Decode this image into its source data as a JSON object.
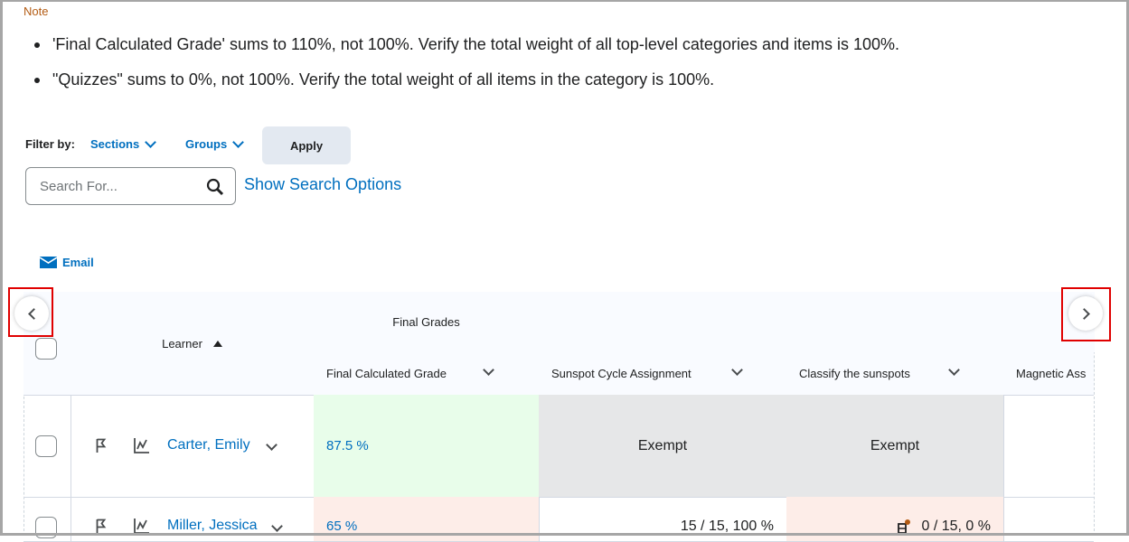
{
  "note": {
    "label": "Note",
    "items": [
      "'Final Calculated Grade' sums to 110%, not 100%. Verify the total weight of all top-level categories and items is 100%.",
      "\"Quizzes\" sums to 0%, not 100%. Verify the total weight of all items in the category is 100%."
    ]
  },
  "filter": {
    "label": "Filter by:",
    "sections": "Sections",
    "groups": "Groups",
    "apply": "Apply"
  },
  "search": {
    "placeholder": "Search For...",
    "options_link": "Show Search Options"
  },
  "actions": {
    "email": "Email"
  },
  "table": {
    "learner_header": "Learner",
    "group_header": "Final Grades",
    "columns": [
      "Final Calculated Grade",
      "Sunspot Cycle Assignment",
      "Classify the sunspots",
      "Magnetic Ass"
    ],
    "rows": [
      {
        "name": "Carter, Emily",
        "final": "87.5 %",
        "sunspot": "Exempt",
        "classify": "Exempt"
      },
      {
        "name": "Miller, Jessica",
        "final": "65 %",
        "sunspot": "15 / 15, 100 %",
        "classify": "0 / 15, 0 %"
      }
    ]
  },
  "colors": {
    "accent": "#006fbf",
    "pass": "#e8fdea",
    "fail": "#fdede8",
    "exempt": "#e6e7e8",
    "highlight": "#e00000"
  }
}
